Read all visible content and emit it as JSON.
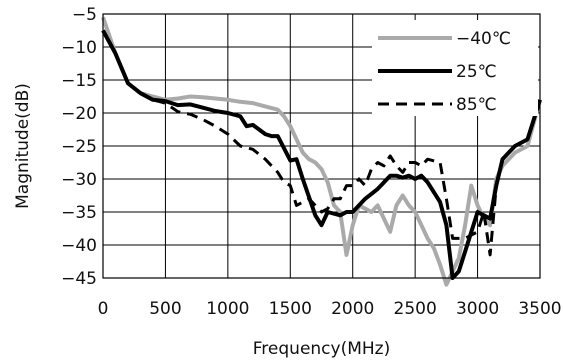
{
  "chart_data": {
    "type": "line",
    "title": "",
    "xlabel": "Frequency(MHz)",
    "ylabel": "Magnitude(dB)",
    "xlim": [
      0,
      3500
    ],
    "ylim": [
      -45,
      -5
    ],
    "xticks": [
      0,
      500,
      1000,
      1500,
      2000,
      2500,
      3000,
      3500
    ],
    "yticks": [
      -5,
      -10,
      -15,
      -20,
      -25,
      -30,
      -35,
      -40,
      -45
    ],
    "grid": true,
    "legend_position": "top-right",
    "series": [
      {
        "name": "-40℃",
        "color": "#aaaaaa",
        "dash": "solid",
        "width": 4,
        "x": [
          0,
          100,
          200,
          300,
          400,
          500,
          600,
          700,
          800,
          900,
          1000,
          1100,
          1200,
          1300,
          1400,
          1450,
          1500,
          1550,
          1600,
          1650,
          1700,
          1750,
          1800,
          1850,
          1900,
          1950,
          2000,
          2050,
          2100,
          2150,
          2200,
          2250,
          2300,
          2350,
          2400,
          2450,
          2500,
          2550,
          2600,
          2650,
          2700,
          2750,
          2800,
          2850,
          2900,
          2950,
          3000,
          3050,
          3100,
          3150,
          3200,
          3300,
          3400,
          3500
        ],
        "y": [
          -5.5,
          -11,
          -15.5,
          -17,
          -17.5,
          -18,
          -17.8,
          -17.5,
          -17.6,
          -17.8,
          -18,
          -18.3,
          -18.5,
          -19,
          -19.5,
          -20.5,
          -22,
          -24,
          -26,
          -27,
          -27.5,
          -28.5,
          -30.5,
          -34,
          -35,
          -41.5,
          -37,
          -34,
          -34.5,
          -35,
          -34,
          -36,
          -38,
          -34,
          -32.5,
          -34,
          -35,
          -37,
          -39,
          -40.5,
          -43,
          -46,
          -44,
          -42,
          -37,
          -31,
          -34,
          -36,
          -37,
          -30,
          -28,
          -26,
          -25,
          -18
        ]
      },
      {
        "name": "25℃",
        "color": "#000000",
        "dash": "solid",
        "width": 4,
        "x": [
          0,
          100,
          200,
          300,
          400,
          500,
          600,
          700,
          800,
          900,
          1000,
          1100,
          1150,
          1200,
          1300,
          1350,
          1400,
          1500,
          1550,
          1600,
          1700,
          1750,
          1800,
          1900,
          1950,
          2000,
          2100,
          2200,
          2300,
          2350,
          2400,
          2450,
          2500,
          2550,
          2600,
          2700,
          2750,
          2800,
          2850,
          2900,
          3000,
          3050,
          3100,
          3150,
          3200,
          3300,
          3400,
          3500
        ],
        "y": [
          -7.5,
          -11,
          -15.5,
          -17,
          -18,
          -18.2,
          -18.8,
          -18.7,
          -19.2,
          -19.7,
          -20,
          -20.5,
          -22,
          -21.8,
          -23.2,
          -23.5,
          -23.5,
          -27.2,
          -27,
          -30,
          -35.5,
          -37,
          -35,
          -35.5,
          -35,
          -35,
          -33,
          -31.5,
          -29.5,
          -29.5,
          -29.8,
          -29.5,
          -30,
          -29.5,
          -30.5,
          -33.5,
          -37,
          -45,
          -44,
          -41,
          -35,
          -35.5,
          -36,
          -31,
          -27,
          -25,
          -24,
          -18
        ]
      },
      {
        "name": "85℃",
        "color": "#000000",
        "dash": "dashed",
        "width": 3,
        "x": [
          0,
          100,
          200,
          300,
          400,
          500,
          600,
          700,
          800,
          900,
          1000,
          1100,
          1200,
          1300,
          1400,
          1450,
          1500,
          1550,
          1600,
          1650,
          1700,
          1750,
          1800,
          1850,
          1900,
          1950,
          2000,
          2050,
          2100,
          2150,
          2200,
          2250,
          2300,
          2350,
          2400,
          2450,
          2500,
          2550,
          2600,
          2700,
          2750,
          2800,
          2850,
          2900,
          2950,
          3000,
          3050,
          3100,
          3150,
          3200,
          3300,
          3400,
          3500
        ],
        "y": [
          -7.5,
          -11,
          -15.5,
          -17,
          -18,
          -18.5,
          -19.8,
          -20.2,
          -21,
          -22,
          -23.2,
          -25,
          -25.5,
          -27,
          -29,
          -30.5,
          -31,
          -34,
          -33.5,
          -33,
          -34,
          -35,
          -34.5,
          -33,
          -33,
          -31,
          -31,
          -30,
          -31,
          -28.5,
          -27.5,
          -28,
          -26.5,
          -28,
          -29,
          -27.5,
          -27.5,
          -28,
          -27,
          -27.5,
          -33,
          -39,
          -39,
          -39,
          -38.5,
          -38,
          -35,
          -41.5,
          -31,
          -27,
          -25,
          -24,
          -18
        ]
      }
    ]
  }
}
